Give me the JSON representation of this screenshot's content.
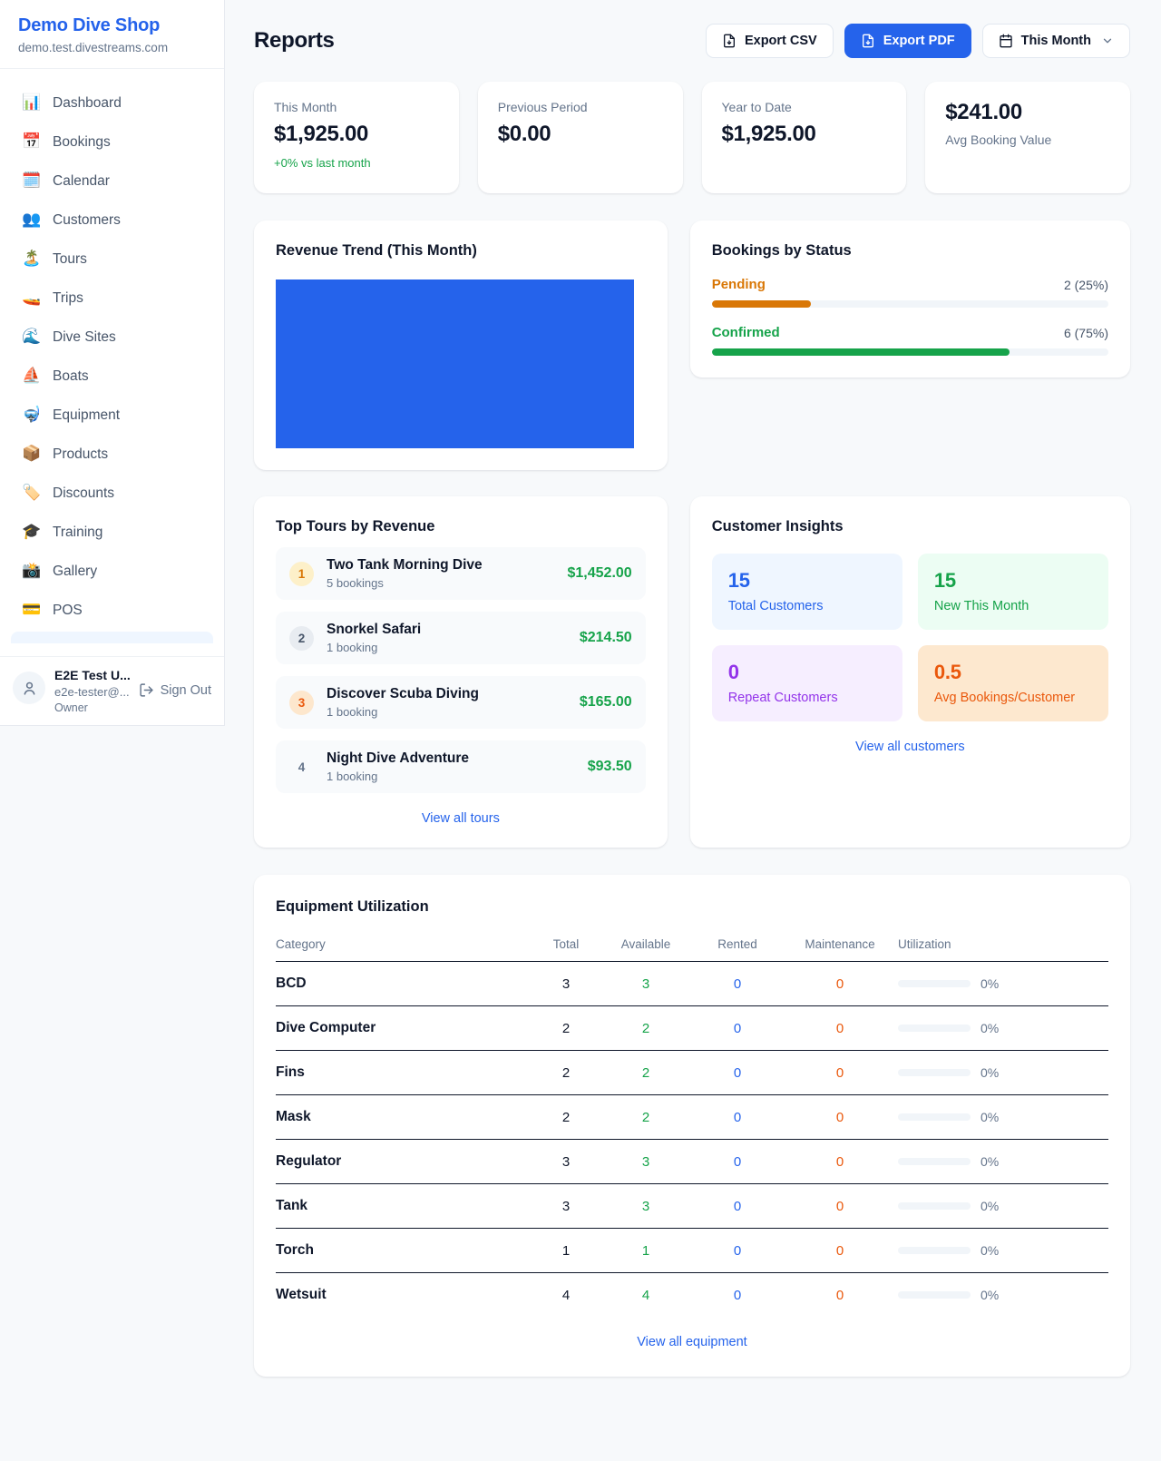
{
  "brand": {
    "name": "Demo Dive Shop",
    "domain": "demo.test.divestreams.com"
  },
  "sidebar": {
    "items": [
      {
        "icon": "📊",
        "label": "Dashboard"
      },
      {
        "icon": "📅",
        "label": "Bookings"
      },
      {
        "icon": "🗓️",
        "label": "Calendar"
      },
      {
        "icon": "👥",
        "label": "Customers"
      },
      {
        "icon": "🏝️",
        "label": "Tours"
      },
      {
        "icon": "🚤",
        "label": "Trips"
      },
      {
        "icon": "🌊",
        "label": "Dive Sites"
      },
      {
        "icon": "⛵",
        "label": "Boats"
      },
      {
        "icon": "🤿",
        "label": "Equipment"
      },
      {
        "icon": "📦",
        "label": "Products"
      },
      {
        "icon": "🏷️",
        "label": "Discounts"
      },
      {
        "icon": "🎓",
        "label": "Training"
      },
      {
        "icon": "📸",
        "label": "Gallery"
      },
      {
        "icon": "💳",
        "label": "POS"
      }
    ],
    "user": {
      "name": "E2E Test U...",
      "email": "e2e-tester@...",
      "role": "Owner",
      "sign_out_label": "Sign Out"
    }
  },
  "header": {
    "title": "Reports",
    "export_csv_label": "Export CSV",
    "export_pdf_label": "Export PDF",
    "period_label": "This Month"
  },
  "stats": {
    "this_month": {
      "label": "This Month",
      "value": "$1,925.00",
      "note": "+0% vs last month"
    },
    "previous_period": {
      "label": "Previous Period",
      "value": "$0.00"
    },
    "year_to_date": {
      "label": "Year to Date",
      "value": "$1,925.00"
    },
    "avg_booking": {
      "value": "$241.00",
      "label": "Avg Booking Value"
    }
  },
  "revenue_trend": {
    "title": "Revenue Trend (This Month)",
    "bar_color": "#2563eb"
  },
  "bookings_by_status": {
    "title": "Bookings by Status",
    "items": [
      {
        "label": "Pending",
        "count_text": "2 (25%)",
        "pct": 25,
        "color": "#d97706"
      },
      {
        "label": "Confirmed",
        "count_text": "6 (75%)",
        "pct": 75,
        "color": "#16a34a"
      }
    ]
  },
  "top_tours": {
    "title": "Top Tours by Revenue",
    "items": [
      {
        "rank": "1",
        "name": "Two Tank Morning Dive",
        "bookings": "5 bookings",
        "amount": "$1,452.00"
      },
      {
        "rank": "2",
        "name": "Snorkel Safari",
        "bookings": "1 booking",
        "amount": "$214.50"
      },
      {
        "rank": "3",
        "name": "Discover Scuba Diving",
        "bookings": "1 booking",
        "amount": "$165.00"
      },
      {
        "rank": "4",
        "name": "Night Dive Adventure",
        "bookings": "1 booking",
        "amount": "$93.50"
      }
    ],
    "view_all": "View all tours"
  },
  "customer_insights": {
    "title": "Customer Insights",
    "tiles": [
      {
        "value": "15",
        "label": "Total Customers",
        "accent": "#2563eb",
        "bg": "#eff6ff"
      },
      {
        "value": "15",
        "label": "New This Month",
        "accent": "#16a34a",
        "bg": "#ecfdf3"
      },
      {
        "value": "0",
        "label": "Repeat Customers",
        "accent": "#9333ea",
        "bg": "#f6eeff"
      },
      {
        "value": "0.5",
        "label": "Avg Bookings/Customer",
        "accent": "#ea580c",
        "bg": "#fde8cf"
      }
    ],
    "view_all": "View all customers"
  },
  "equipment": {
    "title": "Equipment Utilization",
    "columns": [
      "Category",
      "Total",
      "Available",
      "Rented",
      "Maintenance",
      "Utilization"
    ],
    "rows": [
      {
        "category": "BCD",
        "total": "3",
        "available": "3",
        "rented": "0",
        "maintenance": "0",
        "utilization": "0%"
      },
      {
        "category": "Dive Computer",
        "total": "2",
        "available": "2",
        "rented": "0",
        "maintenance": "0",
        "utilization": "0%"
      },
      {
        "category": "Fins",
        "total": "2",
        "available": "2",
        "rented": "0",
        "maintenance": "0",
        "utilization": "0%"
      },
      {
        "category": "Mask",
        "total": "2",
        "available": "2",
        "rented": "0",
        "maintenance": "0",
        "utilization": "0%"
      },
      {
        "category": "Regulator",
        "total": "3",
        "available": "3",
        "rented": "0",
        "maintenance": "0",
        "utilization": "0%"
      },
      {
        "category": "Tank",
        "total": "3",
        "available": "3",
        "rented": "0",
        "maintenance": "0",
        "utilization": "0%"
      },
      {
        "category": "Torch",
        "total": "1",
        "available": "1",
        "rented": "0",
        "maintenance": "0",
        "utilization": "0%"
      },
      {
        "category": "Wetsuit",
        "total": "4",
        "available": "4",
        "rented": "0",
        "maintenance": "0",
        "utilization": "0%"
      }
    ],
    "view_all": "View all equipment"
  },
  "colors": {
    "accent_blue": "#2563eb",
    "green": "#16a34a",
    "amber": "#d97706",
    "deep_orange": "#ea580c",
    "purple": "#9333ea",
    "page_bg": "#f7f9fb",
    "text_dark": "#0f172a",
    "text_gray": "#64748b"
  }
}
